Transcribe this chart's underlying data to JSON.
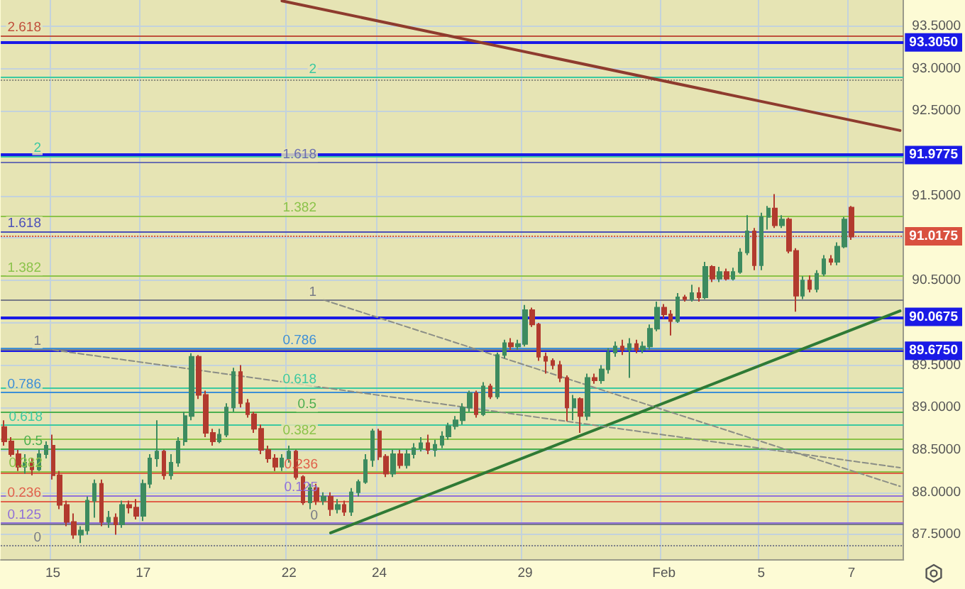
{
  "chart_data": {
    "type": "candlestick",
    "categories": [
      null,
      null,
      null,
      null,
      null,
      null,
      null,
      "15",
      null,
      null,
      null,
      null,
      null,
      null,
      null,
      null,
      null,
      null,
      null,
      null,
      "17",
      null,
      null,
      null,
      null,
      null,
      null,
      null,
      null,
      null,
      null,
      null,
      null,
      null,
      null,
      null,
      null,
      null,
      null,
      null,
      null,
      "22",
      null,
      null,
      null,
      null,
      null,
      null,
      null,
      null,
      null,
      null,
      null,
      null,
      "24",
      null,
      null,
      null,
      null,
      null,
      null,
      null,
      null,
      null,
      null,
      null,
      null,
      null,
      null,
      null,
      null,
      null,
      null,
      null,
      null,
      "29",
      null,
      null,
      null,
      null,
      null,
      null,
      null,
      null,
      null,
      null,
      null,
      null,
      null,
      null,
      null,
      null,
      null,
      null,
      null,
      "Feb",
      null,
      null,
      null,
      null,
      null,
      null,
      null,
      null,
      null,
      null,
      null,
      null,
      null,
      "5",
      null,
      null,
      null,
      null,
      null,
      null,
      null,
      null,
      null,
      null,
      null,
      null,
      "7",
      null,
      null,
      null,
      null,
      null,
      null,
      null
    ],
    "ohlc": [
      [
        88.77,
        88.85,
        88.55,
        88.6
      ],
      [
        88.6,
        88.65,
        88.42,
        88.45
      ],
      [
        88.45,
        88.5,
        88.25,
        88.3
      ],
      [
        88.3,
        88.45,
        88.22,
        88.35
      ],
      [
        88.35,
        88.4,
        88.2,
        88.27
      ],
      [
        88.27,
        88.5,
        88.25,
        88.45
      ],
      [
        88.45,
        88.6,
        88.4,
        88.55
      ],
      [
        88.55,
        88.68,
        88.15,
        88.2
      ],
      [
        88.2,
        88.25,
        87.8,
        87.85
      ],
      [
        87.85,
        87.9,
        87.6,
        87.65
      ],
      [
        87.65,
        87.75,
        87.45,
        87.5
      ],
      [
        87.5,
        87.6,
        87.4,
        87.55
      ],
      [
        87.55,
        87.95,
        87.5,
        87.9
      ],
      [
        87.9,
        88.15,
        87.7,
        88.1
      ],
      [
        88.1,
        88.15,
        87.6,
        87.65
      ],
      [
        87.65,
        87.78,
        87.58,
        87.7
      ],
      [
        87.7,
        87.75,
        87.5,
        87.62
      ],
      [
        87.62,
        87.9,
        87.58,
        87.85
      ],
      [
        87.85,
        87.9,
        87.75,
        87.82
      ],
      [
        87.82,
        87.92,
        87.68,
        87.72
      ],
      [
        87.72,
        88.15,
        87.66,
        88.1
      ],
      [
        88.1,
        88.45,
        88.05,
        88.4
      ],
      [
        88.4,
        88.85,
        88.3,
        88.48
      ],
      [
        88.48,
        88.5,
        88.15,
        88.2
      ],
      [
        88.2,
        88.45,
        88.15,
        88.35
      ],
      [
        88.35,
        88.65,
        88.3,
        88.6
      ],
      [
        88.6,
        88.95,
        88.55,
        88.9
      ],
      [
        88.9,
        89.64,
        88.85,
        89.6
      ],
      [
        89.6,
        89.62,
        89.1,
        89.15
      ],
      [
        89.15,
        89.2,
        88.65,
        88.7
      ],
      [
        88.7,
        88.75,
        88.55,
        88.6
      ],
      [
        88.6,
        88.75,
        88.58,
        88.68
      ],
      [
        88.68,
        89.05,
        88.65,
        89
      ],
      [
        89,
        89.47,
        88.95,
        89.42
      ],
      [
        89.42,
        89.5,
        89,
        89.05
      ],
      [
        89.05,
        89.1,
        88.88,
        88.92
      ],
      [
        88.92,
        88.95,
        88.7,
        88.75
      ],
      [
        88.75,
        88.8,
        88.45,
        88.5
      ],
      [
        88.5,
        88.55,
        88.35,
        88.4
      ],
      [
        88.4,
        88.45,
        88.25,
        88.3
      ],
      [
        88.3,
        88.45,
        88.25,
        88.4
      ],
      [
        88.4,
        88.55,
        88.35,
        88.48
      ],
      [
        88.48,
        88.5,
        88.15,
        88.18
      ],
      [
        88.18,
        88.2,
        87.85,
        87.88
      ],
      [
        87.88,
        88.1,
        87.8,
        88.05
      ],
      [
        88.05,
        88.1,
        87.85,
        87.9
      ],
      [
        87.9,
        88,
        87.85,
        87.95
      ],
      [
        87.95,
        88,
        87.72,
        87.8
      ],
      [
        87.8,
        87.92,
        87.75,
        87.85
      ],
      [
        87.85,
        87.9,
        87.72,
        87.77
      ],
      [
        87.77,
        88.05,
        87.72,
        88
      ],
      [
        88,
        88.15,
        87.95,
        88.12
      ],
      [
        88.12,
        88.45,
        88.1,
        88.38
      ],
      [
        88.38,
        88.75,
        88.3,
        88.72
      ],
      [
        88.72,
        88.75,
        88.38,
        88.42
      ],
      [
        88.42,
        88.45,
        88.18,
        88.22
      ],
      [
        88.22,
        88.5,
        88.18,
        88.45
      ],
      [
        88.45,
        88.5,
        88.28,
        88.32
      ],
      [
        88.32,
        88.5,
        88.28,
        88.45
      ],
      [
        88.45,
        88.58,
        88.4,
        88.52
      ],
      [
        88.52,
        88.65,
        88.48,
        88.58
      ],
      [
        88.58,
        88.68,
        88.45,
        88.5
      ],
      [
        88.5,
        88.62,
        88.42,
        88.56
      ],
      [
        88.56,
        88.72,
        88.52,
        88.66
      ],
      [
        88.66,
        88.82,
        88.62,
        88.78
      ],
      [
        88.78,
        88.9,
        88.74,
        88.85
      ],
      [
        88.85,
        89.05,
        88.8,
        89
      ],
      [
        89,
        89.2,
        88.95,
        89.17
      ],
      [
        89.17,
        89.2,
        88.88,
        88.92
      ],
      [
        88.92,
        89.3,
        88.9,
        89.25
      ],
      [
        89.25,
        89.28,
        89.1,
        89.13
      ],
      [
        89.13,
        89.65,
        89.1,
        89.62
      ],
      [
        89.62,
        89.8,
        89.58,
        89.76
      ],
      [
        89.76,
        89.82,
        89.68,
        89.72
      ],
      [
        89.72,
        89.8,
        89.68,
        89.75
      ],
      [
        89.75,
        90.21,
        89.72,
        90.15
      ],
      [
        90.15,
        90.18,
        89.95,
        89.98
      ],
      [
        89.98,
        90,
        89.55,
        89.6
      ],
      [
        89.6,
        89.65,
        89.4,
        89.55
      ],
      [
        89.55,
        89.58,
        89.45,
        89.5
      ],
      [
        89.5,
        89.55,
        89.3,
        89.35
      ],
      [
        89.35,
        89.38,
        88.84,
        89
      ],
      [
        89,
        89.15,
        88.85,
        89.1
      ],
      [
        89.1,
        89.12,
        88.7,
        88.9
      ],
      [
        88.9,
        89.4,
        88.85,
        89.35
      ],
      [
        89.35,
        89.4,
        89.28,
        89.32
      ],
      [
        89.32,
        89.5,
        89.28,
        89.45
      ],
      [
        89.45,
        89.7,
        89.4,
        89.65
      ],
      [
        89.65,
        89.78,
        89.6,
        89.72
      ],
      [
        89.72,
        89.8,
        89.62,
        89.68
      ],
      [
        89.68,
        89.82,
        89.35,
        89.75
      ],
      [
        89.75,
        89.8,
        89.64,
        89.68
      ],
      [
        89.68,
        89.78,
        89.64,
        89.72
      ],
      [
        89.72,
        89.98,
        89.68,
        89.93
      ],
      [
        89.93,
        90.25,
        89.9,
        90.18
      ],
      [
        90.18,
        90.22,
        90.05,
        90.1
      ],
      [
        90.1,
        90.15,
        89.85,
        90.02
      ],
      [
        90.02,
        90.35,
        90,
        90.3
      ],
      [
        90.3,
        90.33,
        90.25,
        90.28
      ],
      [
        90.28,
        90.45,
        90.25,
        90.35
      ],
      [
        90.35,
        90.42,
        90.25,
        90.3
      ],
      [
        90.3,
        90.72,
        90.28,
        90.66
      ],
      [
        90.66,
        90.68,
        90.48,
        90.52
      ],
      [
        90.52,
        90.66,
        90.48,
        90.6
      ],
      [
        90.6,
        90.64,
        90.5,
        90.52
      ],
      [
        90.52,
        90.65,
        90.5,
        90.6
      ],
      [
        90.6,
        90.88,
        90.58,
        90.83
      ],
      [
        90.83,
        91.27,
        90.8,
        91.08
      ],
      [
        91.08,
        91.12,
        90.62,
        90.68
      ],
      [
        90.68,
        91.3,
        90.62,
        91.25
      ],
      [
        91.25,
        91.38,
        91.1,
        91.35
      ],
      [
        91.35,
        91.52,
        91.12,
        91.15
      ],
      [
        91.15,
        91.27,
        91.12,
        91.22
      ],
      [
        91.22,
        91.24,
        90.82,
        90.85
      ],
      [
        90.85,
        90.88,
        90.13,
        90.32
      ],
      [
        90.32,
        90.55,
        90.28,
        90.5
      ],
      [
        90.5,
        90.56,
        90.36,
        90.4
      ],
      [
        90.4,
        90.62,
        90.36,
        90.58
      ],
      [
        90.58,
        90.8,
        90.55,
        90.75
      ],
      [
        90.75,
        90.8,
        90.68,
        90.72
      ],
      [
        90.72,
        90.95,
        90.68,
        90.9
      ],
      [
        90.9,
        91.25,
        90.88,
        91.22
      ],
      [
        91.36,
        91.38,
        90.98,
        91.0175
      ],
      null,
      null,
      null,
      null,
      null,
      null,
      null
    ],
    "colors": [
      "#b23a2e",
      "#b23a2e",
      "#b23a2e",
      "#3d8b5f",
      "#b23a2e",
      "#3d8b5f",
      "#3d8b5f",
      "#b23a2e",
      "#b23a2e",
      "#b23a2e",
      "#b23a2e",
      "#3d8b5f",
      "#3d8b5f",
      "#3d8b5f",
      "#b23a2e",
      "#3d8b5f",
      "#b23a2e",
      "#3d8b5f",
      "#b23a2e",
      "#b23a2e",
      "#3d8b5f",
      "#3d8b5f",
      "#3d8b5f",
      "#b23a2e",
      "#3d8b5f",
      "#3d8b5f",
      "#3d8b5f",
      "#3d8b5f",
      "#b23a2e",
      "#b23a2e",
      "#b23a2e",
      "#3d8b5f",
      "#3d8b5f",
      "#3d8b5f",
      "#b23a2e",
      "#b23a2e",
      "#b23a2e",
      "#b23a2e",
      "#b23a2e",
      "#b23a2e",
      "#3d8b5f",
      "#3d8b5f",
      "#b23a2e",
      "#b23a2e",
      "#3d8b5f",
      "#b23a2e",
      "#3d8b5f",
      "#b23a2e",
      "#3d8b5f",
      "#b23a2e",
      "#3d8b5f",
      "#3d8b5f",
      "#3d8b5f",
      "#3d8b5f",
      "#b23a2e",
      "#b23a2e",
      "#3d8b5f",
      "#b23a2e",
      "#3d8b5f",
      "#3d8b5f",
      "#3d8b5f",
      "#b23a2e",
      "#3d8b5f",
      "#3d8b5f",
      "#3d8b5f",
      "#3d8b5f",
      "#3d8b5f",
      "#3d8b5f",
      "#b23a2e",
      "#3d8b5f",
      "#b23a2e",
      "#3d8b5f",
      "#3d8b5f",
      "#b23a2e",
      "#3d8b5f",
      "#3d8b5f",
      "#b23a2e",
      "#b23a2e",
      "#b23a2e",
      "#b23a2e",
      "#b23a2e",
      "#b23a2e",
      "#3d8b5f",
      "#b23a2e",
      "#3d8b5f",
      "#b23a2e",
      "#3d8b5f",
      "#3d8b5f",
      "#3d8b5f",
      "#b23a2e",
      "#3d8b5f",
      "#b23a2e",
      "#3d8b5f",
      "#3d8b5f",
      "#3d8b5f",
      "#b23a2e",
      "#b23a2e",
      "#3d8b5f",
      "#b23a2e",
      "#3d8b5f",
      "#b23a2e",
      "#3d8b5f",
      "#b23a2e",
      "#3d8b5f",
      "#b23a2e",
      "#3d8b5f",
      "#3d8b5f",
      "#3d8b5f",
      "#b23a2e",
      "#3d8b5f",
      "#3d8b5f",
      "#b23a2e",
      "#3d8b5f",
      "#b23a2e",
      "#b23a2e",
      "#3d8b5f",
      "#b23a2e",
      "#3d8b5f",
      "#3d8b5f",
      "#b23a2e",
      "#3d8b5f",
      "#3d8b5f",
      "#b23a2e",
      null,
      null,
      null,
      null,
      null,
      null,
      null
    ],
    "series": [
      {
        "type": "line",
        "color": "#8e3b2e",
        "values": [
          null,
          null,
          null,
          null,
          null,
          null,
          null,
          null,
          null,
          null,
          null,
          null,
          null,
          null,
          null,
          null,
          null,
          null,
          null,
          null,
          null,
          null,
          null,
          null,
          null,
          null,
          null,
          null,
          null,
          null,
          null,
          null,
          null,
          null,
          null,
          null,
          null,
          null,
          null,
          null,
          93.8,
          null,
          null,
          null,
          null,
          null,
          null,
          null,
          null,
          null,
          null,
          null,
          null,
          null,
          null,
          null,
          null,
          null,
          null,
          null,
          null,
          null,
          null,
          null,
          null,
          null,
          null,
          null,
          null,
          null,
          null,
          null,
          null,
          null,
          null,
          null,
          null,
          null,
          null,
          null,
          null,
          null,
          null,
          null,
          null,
          null,
          null,
          null,
          null,
          null,
          null,
          null,
          null,
          null,
          null,
          null,
          null,
          null,
          null,
          null,
          null,
          null,
          null,
          null,
          null,
          null,
          null,
          null,
          null,
          null,
          null,
          null,
          null,
          null,
          null,
          null,
          null,
          null,
          null,
          null,
          null,
          null,
          null,
          null,
          null,
          null,
          null,
          null,
          null,
          92.27
        ]
      },
      {
        "type": "line",
        "color": "#2f7a35",
        "values": [
          null,
          null,
          null,
          null,
          null,
          null,
          null,
          null,
          null,
          null,
          null,
          null,
          null,
          null,
          null,
          null,
          null,
          null,
          null,
          null,
          null,
          null,
          null,
          null,
          null,
          null,
          null,
          null,
          null,
          null,
          null,
          null,
          null,
          null,
          null,
          null,
          null,
          null,
          null,
          null,
          null,
          null,
          null,
          null,
          null,
          null,
          null,
          87.52,
          null,
          null,
          null,
          null,
          null,
          null,
          null,
          null,
          null,
          null,
          null,
          null,
          null,
          null,
          null,
          null,
          null,
          null,
          null,
          null,
          null,
          null,
          null,
          null,
          null,
          null,
          null,
          null,
          null,
          null,
          null,
          null,
          null,
          null,
          null,
          null,
          null,
          null,
          null,
          null,
          null,
          null,
          null,
          null,
          null,
          null,
          null,
          null,
          null,
          null,
          null,
          null,
          null,
          null,
          null,
          null,
          null,
          null,
          null,
          null,
          null,
          null,
          null,
          null,
          null,
          null,
          null,
          null,
          null,
          null,
          null,
          null,
          null,
          null,
          null,
          null,
          null,
          null,
          null,
          null,
          null,
          90.14
        ]
      },
      {
        "type": "line",
        "color": "#8a8d86",
        "line_style": "dashed",
        "values": [
          null,
          null,
          null,
          null,
          null,
          null,
          null,
          89.68,
          null,
          null,
          null,
          null,
          null,
          null,
          null,
          null,
          null,
          null,
          null,
          null,
          null,
          null,
          null,
          null,
          null,
          null,
          null,
          null,
          null,
          null,
          null,
          null,
          null,
          null,
          null,
          null,
          null,
          null,
          null,
          null,
          null,
          null,
          null,
          null,
          null,
          null,
          null,
          null,
          null,
          null,
          null,
          null,
          null,
          null,
          null,
          null,
          null,
          null,
          null,
          null,
          null,
          null,
          null,
          null,
          null,
          null,
          null,
          null,
          null,
          null,
          null,
          null,
          null,
          null,
          null,
          null,
          null,
          null,
          null,
          null,
          null,
          null,
          null,
          null,
          null,
          null,
          null,
          null,
          null,
          null,
          null,
          null,
          null,
          null,
          null,
          null,
          null,
          null,
          null,
          null,
          null,
          null,
          null,
          null,
          null,
          null,
          null,
          null,
          null,
          null,
          null,
          null,
          null,
          null,
          null,
          null,
          null,
          null,
          null,
          null,
          null,
          null,
          null,
          null,
          null,
          null,
          null,
          null,
          null,
          88.29
        ]
      },
      {
        "type": "line",
        "color": "#8a8d86",
        "line_style": "dashed",
        "values": [
          null,
          null,
          null,
          null,
          null,
          null,
          null,
          null,
          null,
          null,
          null,
          null,
          null,
          null,
          null,
          null,
          null,
          null,
          null,
          null,
          null,
          null,
          null,
          null,
          null,
          null,
          null,
          null,
          null,
          null,
          null,
          null,
          null,
          null,
          null,
          null,
          null,
          null,
          null,
          null,
          null,
          null,
          null,
          null,
          null,
          null,
          90.27,
          null,
          null,
          null,
          null,
          null,
          null,
          null,
          null,
          null,
          null,
          null,
          null,
          null,
          null,
          null,
          null,
          null,
          null,
          null,
          null,
          null,
          null,
          null,
          null,
          null,
          null,
          null,
          null,
          null,
          null,
          null,
          null,
          null,
          null,
          null,
          null,
          null,
          null,
          null,
          null,
          null,
          null,
          null,
          null,
          null,
          null,
          null,
          null,
          null,
          null,
          null,
          null,
          null,
          null,
          null,
          null,
          null,
          null,
          null,
          null,
          null,
          null,
          null,
          null,
          null,
          null,
          null,
          null,
          null,
          null,
          null,
          null,
          null,
          null,
          null,
          null,
          null,
          null,
          null,
          null,
          null,
          null,
          88.07
        ]
      }
    ],
    "ylim": [
      87.21,
      93.81
    ],
    "yticks": [
      {
        "value": 87.5,
        "label": "87.5000"
      },
      {
        "value": 88,
        "label": "88.0000"
      },
      {
        "value": 88.5,
        "label": "88.5000"
      },
      {
        "value": 89,
        "label": "89.0000"
      },
      {
        "value": 89.5,
        "label": "89.5000"
      },
      {
        "value": 90,
        "label": null
      },
      {
        "value": 90.5,
        "label": "90.5000"
      },
      {
        "value": 91,
        "label": null
      },
      {
        "value": 91.5,
        "label": "91.5000"
      },
      {
        "value": 92,
        "label": null
      },
      {
        "value": 92.5,
        "label": "92.5000"
      },
      {
        "value": 93,
        "label": "93.0000"
      },
      {
        "value": 93.5,
        "label": "93.5000"
      }
    ],
    "grid": true,
    "marker": "none",
    "ref_lines": [
      {
        "axis": "y",
        "value": 93.305,
        "label": "93.3050",
        "color": "#1a1ae6"
      },
      {
        "axis": "y",
        "value": 91.9775,
        "label": "91.9775",
        "color": "#1a1ae6"
      },
      {
        "axis": "y",
        "value": 91.0175,
        "label": "91.0175",
        "color": "#d9503f",
        "line_style": "dotted"
      },
      {
        "axis": "y",
        "value": 90.0675,
        "label": "90.0675",
        "color": "#1a1ae6"
      },
      {
        "axis": "y",
        "value": 89.675,
        "label": "89.6750",
        "color": "#1a1ae6"
      },
      {
        "axis": "y",
        "value": 92.86,
        "color": "#8a8a7a",
        "line_style": "dotted"
      },
      {
        "axis": "y",
        "value": 93.39,
        "color": "#c0503c"
      },
      {
        "axis": "y",
        "value": 91.97,
        "color": "#3cc9a0"
      },
      {
        "axis": "y",
        "value": 91.08,
        "color": "#4b50b8"
      },
      {
        "axis": "y",
        "value": 90.55,
        "color": "#8bc34a"
      },
      {
        "axis": "y",
        "value": 89.69,
        "color": "#787b86"
      },
      {
        "axis": "y",
        "value": 89.18,
        "color": "#3d8fd6"
      },
      {
        "axis": "y",
        "value": 88.79,
        "color": "#3cc9a0"
      },
      {
        "axis": "y",
        "value": 88.51,
        "color": "#4caf50"
      },
      {
        "axis": "y",
        "value": 88.25,
        "color": "#8bc34a"
      },
      {
        "axis": "y",
        "value": 87.9,
        "color": "#e0604a"
      },
      {
        "axis": "y",
        "value": 87.64,
        "color": "#9170d8"
      },
      {
        "axis": "y",
        "value": 87.37,
        "color": "#787b86",
        "line_style": "dotted"
      },
      {
        "axis": "y",
        "value": 92.9,
        "color": "#3cc9a0"
      },
      {
        "axis": "y",
        "value": 91.89,
        "color": "#6a6fb0"
      },
      {
        "axis": "y",
        "value": 91.26,
        "color": "#8bc34a"
      },
      {
        "axis": "y",
        "value": 90.27,
        "color": "#787b86"
      },
      {
        "axis": "y",
        "value": 89.7,
        "color": "#3d8fd6"
      },
      {
        "axis": "y",
        "value": 89.24,
        "color": "#3cc9a0"
      },
      {
        "axis": "y",
        "value": 88.94,
        "color": "#4caf50"
      },
      {
        "axis": "y",
        "value": 88.63,
        "color": "#8bc34a"
      },
      {
        "axis": "y",
        "value": 88.23,
        "color": "#e0604a"
      },
      {
        "axis": "y",
        "value": 87.96,
        "color": "#9170d8"
      },
      {
        "axis": "y",
        "value": 87.63,
        "color": "#787b86"
      }
    ],
    "annotations": [
      {
        "text": "2.618",
        "y": 93.39
      },
      {
        "text": "2",
        "y": 91.97
      },
      {
        "text": "1.618",
        "y": 91.08
      },
      {
        "text": "1.382",
        "y": 90.55
      },
      {
        "text": "1",
        "y": 89.69
      },
      {
        "text": "0.786",
        "y": 89.18
      },
      {
        "text": "0.618",
        "y": 88.79
      },
      {
        "text": "0.5",
        "y": 88.51
      },
      {
        "text": "0.382",
        "y": 88.25
      },
      {
        "text": "0.236",
        "y": 87.9
      },
      {
        "text": "0.125",
        "y": 87.64
      },
      {
        "text": "0",
        "y": 87.37
      },
      {
        "text": "2",
        "y": 92.9
      },
      {
        "text": "1.618",
        "y": 91.89
      },
      {
        "text": "1.382",
        "y": 91.26
      },
      {
        "text": "1",
        "y": 90.27
      },
      {
        "text": "0.786",
        "y": 89.7
      },
      {
        "text": "0.618",
        "y": 89.24
      },
      {
        "text": "0.5",
        "y": 88.94
      },
      {
        "text": "0.382",
        "y": 88.63
      },
      {
        "text": "0.236",
        "y": 88.23
      },
      {
        "text": "0.125",
        "y": 87.96
      },
      {
        "text": "0",
        "y": 87.63
      }
    ]
  }
}
